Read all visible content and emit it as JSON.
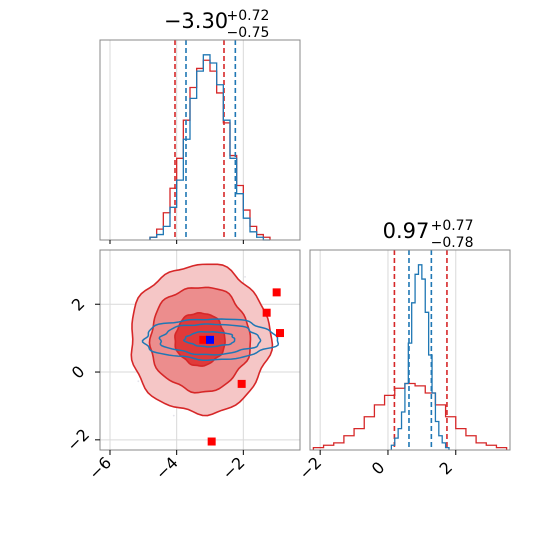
{
  "chart_data": [
    {
      "type": "histogram",
      "panel": "top-left",
      "title": {
        "value": "−3.30",
        "sup": "+0.72",
        "sub": "−0.75"
      },
      "xlim": [
        -6.3,
        -0.3
      ],
      "grid": true,
      "series": [
        {
          "color": "#d62728",
          "bin_edges": [
            -4.8,
            -4.6,
            -4.4,
            -4.2,
            -4.0,
            -3.8,
            -3.6,
            -3.4,
            -3.2,
            -3.0,
            -2.8,
            -2.6,
            -2.4,
            -2.2,
            -2.0,
            -1.8,
            -1.6,
            -1.4,
            -1.2
          ],
          "counts": [
            1,
            4,
            10,
            19,
            30,
            44,
            56,
            63,
            66,
            62,
            54,
            43,
            31,
            20,
            11,
            5,
            2,
            1
          ],
          "quantiles": [
            -4.05,
            -2.58
          ]
        },
        {
          "color": "#1f77b4",
          "bin_edges": [
            -4.8,
            -4.6,
            -4.4,
            -4.2,
            -4.0,
            -3.8,
            -3.6,
            -3.4,
            -3.2,
            -3.0,
            -2.8,
            -2.6,
            -2.4,
            -2.2,
            -2.0,
            -1.8,
            -1.6,
            -1.4,
            -1.2
          ],
          "counts": [
            1,
            2,
            5,
            12,
            22,
            37,
            52,
            62,
            68,
            65,
            57,
            44,
            30,
            17,
            8,
            3,
            1,
            0
          ],
          "quantiles": [
            -3.72,
            -2.24
          ]
        }
      ]
    },
    {
      "type": "contour",
      "panel": "bottom-left",
      "xlim": [
        -6.3,
        -0.3
      ],
      "ylim": [
        -2.3,
        3.6
      ],
      "xticks": [
        "−6",
        "−4",
        "−2"
      ],
      "xtick_values": [
        -6,
        -4,
        -2
      ],
      "yticks": [
        "−2",
        "0",
        "2"
      ],
      "ytick_values": [
        -2,
        0,
        2
      ],
      "grid": true,
      "series": [
        {
          "color": "#d62728",
          "center": [
            -3.3,
            0.97
          ],
          "levels": [
            [
              0.75,
              0.78
            ],
            [
              1.5,
              1.55
            ],
            [
              2.1,
              2.2
            ]
          ]
        },
        {
          "color": "#1f77b4",
          "center": [
            -3.0,
            0.97
          ],
          "levels": [
            [
              0.75,
              0.22
            ],
            [
              1.5,
              0.45
            ],
            [
              2.0,
              0.6
            ]
          ]
        }
      ],
      "markers": [
        {
          "color": "#ff0000",
          "x": -1.0,
          "y": 2.35
        },
        {
          "color": "#ff0000",
          "x": -1.3,
          "y": 1.75
        },
        {
          "color": "#ff0000",
          "x": -0.9,
          "y": 1.15
        },
        {
          "color": "#ff0000",
          "x": -3.2,
          "y": 0.95
        },
        {
          "color": "#ff0000",
          "x": -2.05,
          "y": -0.35
        },
        {
          "color": "#ff0000",
          "x": -2.95,
          "y": -2.05
        },
        {
          "color": "#0000ff",
          "x": -3.0,
          "y": 0.95
        }
      ]
    },
    {
      "type": "histogram",
      "panel": "bottom-right",
      "title": {
        "value": "0.97",
        "sup": "+0.77",
        "sub": "−0.78"
      },
      "xlim": [
        -2.3,
        3.6
      ],
      "xticks": [
        "−2",
        "0",
        "2"
      ],
      "xtick_values": [
        -2,
        0,
        2
      ],
      "grid": true,
      "series": [
        {
          "color": "#d62728",
          "bin_edges": [
            -2.2,
            -1.9,
            -1.6,
            -1.3,
            -1.0,
            -0.7,
            -0.4,
            -0.1,
            0.2,
            0.5,
            0.8,
            1.1,
            1.4,
            1.7,
            2.0,
            2.3,
            2.6,
            2.9,
            3.2,
            3.5
          ],
          "counts": [
            1,
            2,
            3,
            6,
            9,
            14,
            19,
            23,
            26,
            28,
            27,
            24,
            19,
            14,
            9,
            6,
            3,
            2,
            1
          ],
          "quantiles": [
            0.19,
            1.74
          ]
        },
        {
          "color": "#1f77b4",
          "bin_edges": [
            0.1,
            0.2,
            0.3,
            0.4,
            0.5,
            0.6,
            0.7,
            0.8,
            0.9,
            1.0,
            1.1,
            1.2,
            1.3,
            1.4,
            1.5,
            1.6,
            1.7,
            1.8
          ],
          "counts": [
            2,
            5,
            9,
            16,
            28,
            45,
            62,
            74,
            78,
            72,
            58,
            40,
            24,
            12,
            6,
            3,
            1
          ],
          "quantiles": [
            0.62,
            1.28
          ]
        }
      ]
    }
  ]
}
